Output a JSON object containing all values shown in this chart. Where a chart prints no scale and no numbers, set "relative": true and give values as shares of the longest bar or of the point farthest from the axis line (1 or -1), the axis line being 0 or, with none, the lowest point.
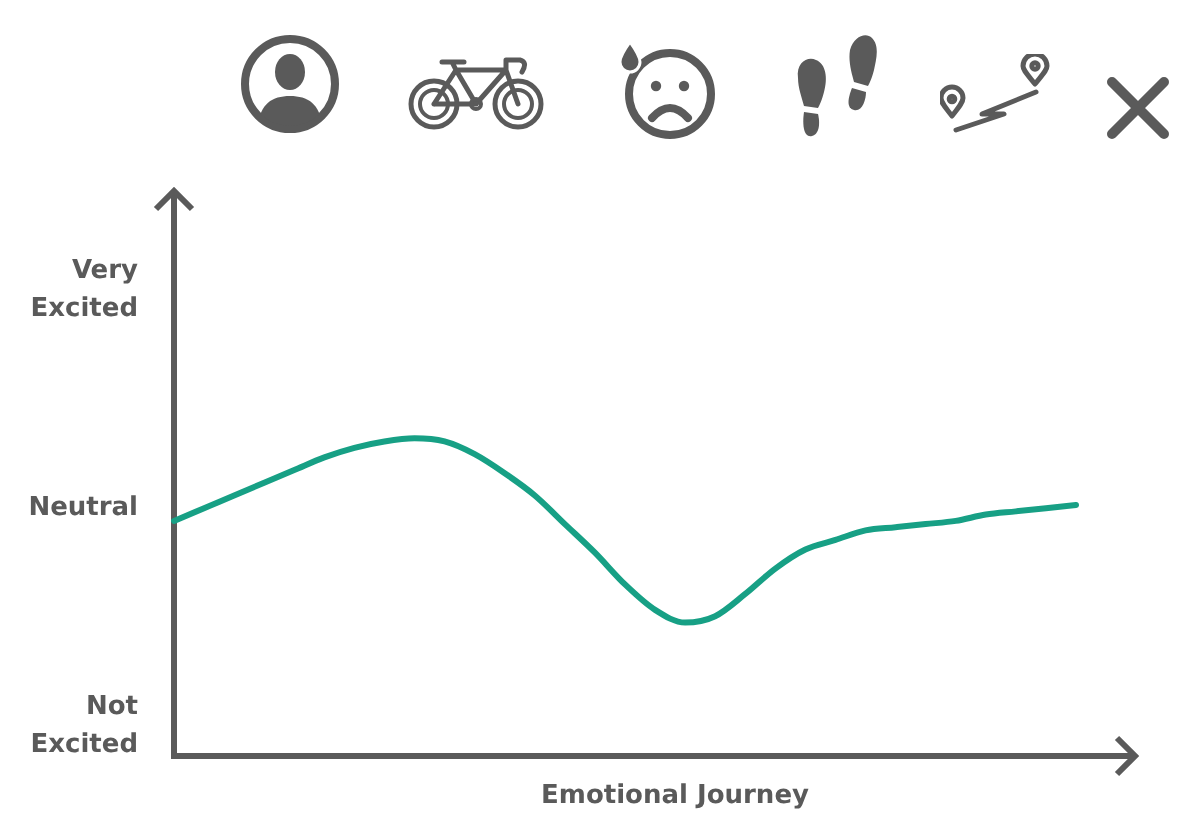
{
  "chart_data": {
    "type": "line",
    "xlabel": "Emotional Journey",
    "relative": true,
    "categories": [
      null,
      null,
      null,
      null,
      null,
      null,
      null,
      null,
      null,
      null,
      null,
      null,
      null,
      null,
      null,
      null,
      null,
      null,
      null,
      null,
      null,
      null,
      null,
      null,
      null,
      null,
      null,
      null,
      null,
      null,
      null
    ],
    "series": [
      {
        "color": "#17a085",
        "values": [
          0.74,
          0.78,
          0.82,
          0.86,
          0.9,
          0.94,
          0.97,
          0.99,
          1,
          0.99,
          0.95,
          0.89,
          0.82,
          0.73,
          0.64,
          0.54,
          0.46,
          0.42,
          0.44,
          0.51,
          0.59,
          0.65,
          0.68,
          0.71,
          0.72,
          0.73,
          0.74,
          0.76,
          0.77,
          0.78,
          0.79
        ]
      }
    ],
    "annotations": [
      "Very Excited",
      "Neutral",
      "Not Excited"
    ],
    "grid": false,
    "legend": false,
    "marker": "none",
    "line_style": "solid"
  }
}
